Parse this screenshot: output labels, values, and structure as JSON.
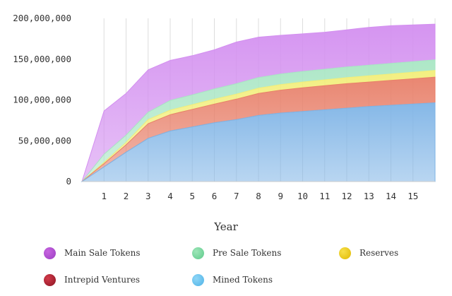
{
  "chart_data": {
    "type": "area",
    "stacked": true,
    "xlabel": "Year",
    "ylabel": "",
    "x": [
      0,
      1,
      2,
      3,
      4,
      5,
      6,
      7,
      8,
      9,
      10,
      11,
      12,
      13,
      14,
      15,
      16
    ],
    "x_tick_labels": [
      "1",
      "2",
      "3",
      "4",
      "5",
      "6",
      "7",
      "8",
      "9",
      "10",
      "11",
      "12",
      "13",
      "14",
      "15"
    ],
    "y_tick_labels": [
      "200,000,000",
      "150,000,000",
      "100,000,000",
      "50,000,000",
      "0"
    ],
    "ylim": [
      0,
      200000000
    ],
    "grid": {
      "vertical": true,
      "horizontal": false
    },
    "legend_position": "bottom",
    "series": [
      {
        "name": "Mined Tokens",
        "color": "#7fb4e6",
        "values": [
          0,
          18000000,
          36000000,
          53000000,
          62000000,
          67000000,
          72000000,
          76000000,
          81000000,
          84000000,
          86000000,
          88000000,
          90000000,
          92000000,
          93500000,
          95000000,
          96500000
        ]
      },
      {
        "name": "Intrepid Ventures",
        "color": "#e8806a",
        "values": [
          0,
          4000000,
          9000000,
          18000000,
          20000000,
          21500000,
          23000000,
          25000000,
          27000000,
          28000000,
          29000000,
          29500000,
          30000000,
          30000000,
          30500000,
          31000000,
          31500000
        ]
      },
      {
        "name": "Reserves",
        "color": "#f2ee7a",
        "values": [
          0,
          1500000,
          3000000,
          5000000,
          5500000,
          5800000,
          6000000,
          6200000,
          6500000,
          6800000,
          7000000,
          7200000,
          7400000,
          7600000,
          7800000,
          8000000,
          8200000
        ]
      },
      {
        "name": "Pre Sale Tokens",
        "color": "#a9e6c4",
        "values": [
          0,
          10000000,
          9000000,
          9000000,
          12000000,
          12000000,
          12500000,
          12800000,
          13000000,
          13000000,
          13000000,
          13000000,
          13000000,
          13000000,
          13000000,
          13000000,
          13000000
        ]
      },
      {
        "name": "Main Sale Tokens",
        "color": "#d38ff0",
        "values": [
          0,
          53000000,
          51000000,
          52000000,
          49000000,
          48000000,
          48000000,
          51000000,
          49500000,
          47400000,
          46000000,
          45300000,
          45600000,
          46400000,
          46200000,
          45000000,
          43800000
        ]
      }
    ]
  },
  "legend": {
    "items": [
      {
        "label": "Main Sale Tokens",
        "color": "#c764e0",
        "color_dark": "#9b3fc2"
      },
      {
        "label": "Pre Sale Tokens",
        "color": "#9ee6b8",
        "color_dark": "#5cc98a"
      },
      {
        "label": "Reserves",
        "color": "#f7e04a",
        "color_dark": "#e0b800"
      },
      {
        "label": "Intrepid Ventures",
        "color": "#d33a4a",
        "color_dark": "#8a1422"
      },
      {
        "label": "Mined Tokens",
        "color": "#8ed6f7",
        "color_dark": "#4fb2e6"
      }
    ]
  }
}
